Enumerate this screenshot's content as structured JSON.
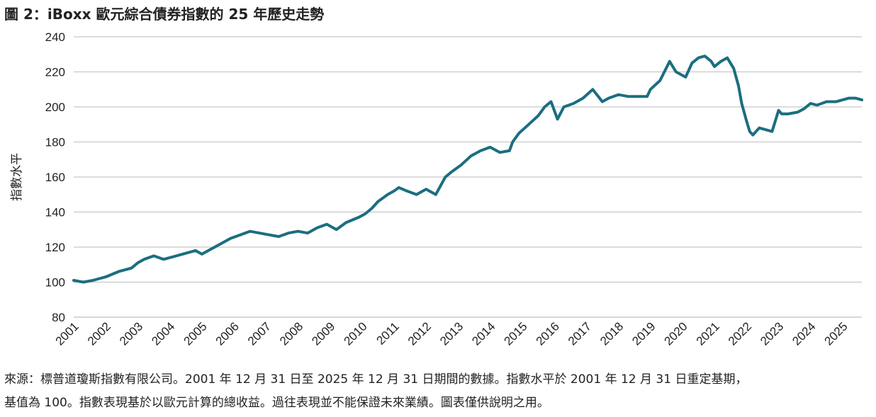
{
  "chart_data": {
    "type": "line",
    "title": "圖 2：iBoxx 歐元綜合債券指數的 25 年歷史走勢",
    "ylabel": "指數水平",
    "xlabel": "",
    "ylim": [
      80,
      240
    ],
    "y_ticks": [
      "80",
      "100",
      "120",
      "140",
      "160",
      "180",
      "200",
      "220",
      "240"
    ],
    "x_ticks": [
      "2001",
      "2002",
      "2003",
      "2004",
      "2005",
      "2006",
      "2007",
      "2008",
      "2009",
      "2010",
      "2011",
      "2012",
      "2013",
      "2014",
      "2015",
      "2016",
      "2017",
      "2018",
      "2019",
      "2020",
      "2021",
      "2022",
      "2023",
      "2024",
      "2025"
    ],
    "grid": true,
    "line_color": "#1b6e80",
    "series": [
      {
        "x": [
          2001.0,
          2001.3,
          2001.6,
          2002.0,
          2002.4,
          2002.8,
          2003.0,
          2003.2,
          2003.5,
          2003.8,
          2004.0,
          2004.4,
          2004.8,
          2005.0,
          2005.3,
          2005.6,
          2005.9,
          2006.2,
          2006.5,
          2006.8,
          2007.1,
          2007.4,
          2007.7,
          2008.0,
          2008.3,
          2008.6,
          2008.9,
          2009.2,
          2009.5,
          2009.9,
          2010.1,
          2010.3,
          2010.5,
          2010.8,
          2011.0,
          2011.15,
          2011.4,
          2011.7,
          2012.0,
          2012.3,
          2012.6,
          2012.8,
          2013.1,
          2013.4,
          2013.7,
          2014.0,
          2014.3,
          2014.6,
          2014.7,
          2014.9,
          2015.2,
          2015.5,
          2015.7,
          2015.9,
          2016.1,
          2016.3,
          2016.6,
          2016.9,
          2017.2,
          2017.5,
          2017.7,
          2018.0,
          2018.3,
          2018.6,
          2018.9,
          2019.0,
          2019.3,
          2019.6,
          2019.8,
          2020.1,
          2020.3,
          2020.5,
          2020.7,
          2020.9,
          2021.0,
          2021.2,
          2021.4,
          2021.6,
          2021.75,
          2021.85,
          2022.0,
          2022.1,
          2022.2,
          2022.4,
          2022.6,
          2022.8,
          2023.0,
          2023.1,
          2023.3,
          2023.6,
          2023.8,
          2024.0,
          2024.2,
          2024.5,
          2024.8,
          2025.0,
          2025.2,
          2025.4,
          2025.6
        ],
        "y": [
          101,
          100,
          101,
          103,
          106,
          108,
          111,
          113,
          115,
          113,
          114,
          116,
          118,
          116,
          119,
          122,
          125,
          127,
          129,
          128,
          127,
          126,
          128,
          129,
          128,
          131,
          133,
          130,
          134,
          137,
          139,
          142,
          146,
          150,
          152,
          154,
          152,
          150,
          153,
          150,
          160,
          163,
          167,
          172,
          175,
          177,
          174,
          175,
          180,
          185,
          190,
          195,
          200,
          203,
          193,
          200,
          202,
          205,
          210,
          203,
          205,
          207,
          206,
          206,
          206,
          210,
          215,
          226,
          220,
          217,
          225,
          228,
          229,
          226,
          223,
          226,
          228,
          222,
          212,
          202,
          192,
          186,
          184,
          188,
          187,
          186,
          198,
          196,
          196,
          197,
          199,
          202,
          201,
          203,
          203,
          204,
          205,
          205,
          204
        ]
      }
    ],
    "source_lines": [
      "來源：標普道瓊斯指數有限公司。2001 年 12 月 31 日至 2025 年 12 月 31 日期間的數據。指數水平於 2001 年 12 月 31 日重定基期，",
      "基值為 100。指數表現基於以歐元計算的總收益。過往表現並不能保證未來業績。圖表僅供說明之用。"
    ]
  }
}
